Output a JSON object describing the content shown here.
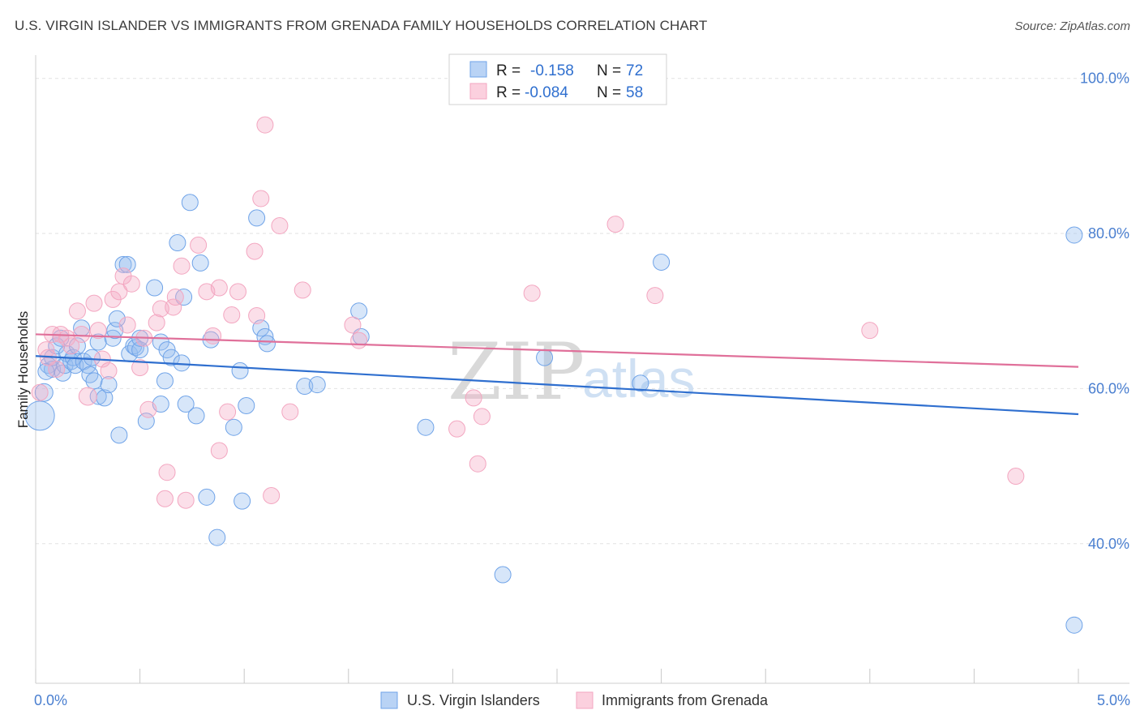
{
  "title": "U.S. VIRGIN ISLANDER VS IMMIGRANTS FROM GRENADA FAMILY HOUSEHOLDS CORRELATION CHART",
  "source": "Source: ZipAtlas.com",
  "watermark": {
    "zip": "ZIP",
    "atlas": "atlas"
  },
  "legend": {
    "rows": [
      {
        "r_label": "R =",
        "r_value": "-0.158",
        "n_label": "N =",
        "n_value": "72"
      },
      {
        "r_label": "R =",
        "r_value": "-0.084",
        "n_label": "N =",
        "n_value": "58"
      }
    ]
  },
  "chart_data": {
    "type": "scatter",
    "title": "U.S. VIRGIN ISLANDER VS IMMIGRANTS FROM GRENADA FAMILY HOUSEHOLDS CORRELATION CHART",
    "xlabel": "",
    "ylabel": "Family Households",
    "xlim": [
      0,
      5
    ],
    "ylim": [
      22,
      103
    ],
    "x_tick_labels": [
      {
        "value": 0,
        "label": "0.0%"
      },
      {
        "value": 5,
        "label": "5.0%"
      }
    ],
    "y_tick_labels": [
      {
        "value": 100,
        "label": "100.0%"
      },
      {
        "value": 80,
        "label": "80.0%"
      },
      {
        "value": 60,
        "label": "60.0%"
      },
      {
        "value": 40,
        "label": "40.0%"
      }
    ],
    "grid": true,
    "legend_position": "top-center",
    "series": [
      {
        "name": "U.S. Virgin Islanders",
        "color": "#6fa3e8",
        "trend_color": "#2f6fcf",
        "trend": {
          "x0": 0.0,
          "y0": 64.2,
          "x1": 5.0,
          "y1": 56.7
        },
        "points": [
          [
            0.02,
            56.5
          ],
          [
            0.04,
            59.5
          ],
          [
            0.06,
            63.0
          ],
          [
            0.08,
            62.5
          ],
          [
            0.08,
            64.0
          ],
          [
            0.1,
            65.5
          ],
          [
            0.12,
            66.5
          ],
          [
            0.13,
            62.0
          ],
          [
            0.14,
            63.0
          ],
          [
            0.15,
            64.5
          ],
          [
            0.17,
            63.5
          ],
          [
            0.18,
            64.0
          ],
          [
            0.19,
            63.0
          ],
          [
            0.2,
            65.5
          ],
          [
            0.22,
            67.8
          ],
          [
            0.23,
            63.5
          ],
          [
            0.25,
            63.0
          ],
          [
            0.26,
            61.8
          ],
          [
            0.27,
            64.0
          ],
          [
            0.28,
            61.0
          ],
          [
            0.3,
            59.0
          ],
          [
            0.3,
            66.0
          ],
          [
            0.33,
            58.8
          ],
          [
            0.35,
            60.5
          ],
          [
            0.37,
            66.5
          ],
          [
            0.38,
            67.5
          ],
          [
            0.39,
            69.0
          ],
          [
            0.4,
            54.0
          ],
          [
            0.42,
            76.0
          ],
          [
            0.44,
            76.0
          ],
          [
            0.45,
            64.5
          ],
          [
            0.47,
            65.5
          ],
          [
            0.48,
            65.3
          ],
          [
            0.5,
            65.0
          ],
          [
            0.5,
            66.5
          ],
          [
            0.53,
            55.8
          ],
          [
            0.57,
            73.0
          ],
          [
            0.6,
            58.0
          ],
          [
            0.6,
            66.0
          ],
          [
            0.62,
            61.0
          ],
          [
            0.63,
            65.0
          ],
          [
            0.65,
            64.0
          ],
          [
            0.68,
            78.8
          ],
          [
            0.7,
            63.3
          ],
          [
            0.71,
            71.8
          ],
          [
            0.72,
            58.0
          ],
          [
            0.74,
            84.0
          ],
          [
            0.77,
            56.5
          ],
          [
            0.79,
            76.2
          ],
          [
            0.82,
            46.0
          ],
          [
            0.84,
            66.3
          ],
          [
            0.87,
            40.8
          ],
          [
            0.95,
            55.0
          ],
          [
            0.98,
            62.3
          ],
          [
            0.99,
            45.5
          ],
          [
            1.01,
            57.8
          ],
          [
            1.06,
            82.0
          ],
          [
            1.08,
            67.8
          ],
          [
            1.1,
            66.7
          ],
          [
            1.11,
            65.8
          ],
          [
            1.29,
            60.3
          ],
          [
            1.35,
            60.5
          ],
          [
            1.55,
            70.0
          ],
          [
            1.56,
            66.7
          ],
          [
            1.87,
            55.0
          ],
          [
            2.24,
            36.0
          ],
          [
            2.44,
            64.0
          ],
          [
            2.9,
            60.7
          ],
          [
            3.0,
            76.3
          ],
          [
            4.98,
            79.8
          ],
          [
            4.98,
            29.5
          ],
          [
            0.05,
            62.2
          ]
        ],
        "sizes": [
          18,
          11,
          10,
          10,
          10,
          10,
          10,
          10,
          10,
          10,
          10,
          10,
          10,
          10,
          10,
          10,
          10,
          10,
          10,
          10,
          10,
          10,
          10,
          10,
          10,
          10,
          10,
          10,
          10,
          10,
          10,
          10,
          10,
          10,
          10,
          10,
          10,
          10,
          10,
          10,
          10,
          10,
          10,
          10,
          10,
          10,
          10,
          10,
          10,
          10,
          10,
          10,
          10,
          10,
          10,
          10,
          10,
          10,
          10,
          10,
          10,
          10,
          10,
          10,
          10,
          10,
          10,
          10,
          10,
          10,
          10,
          10
        ]
      },
      {
        "name": "Immigrants from Grenada",
        "color": "#f3a6c0",
        "trend_color": "#e0709a",
        "trend": {
          "x0": 0.0,
          "y0": 67.0,
          "x1": 5.0,
          "y1": 62.8
        },
        "points": [
          [
            0.02,
            59.5
          ],
          [
            0.05,
            65.0
          ],
          [
            0.08,
            67.0
          ],
          [
            0.1,
            62.5
          ],
          [
            0.12,
            67.0
          ],
          [
            0.15,
            66.5
          ],
          [
            0.17,
            65.5
          ],
          [
            0.2,
            70.0
          ],
          [
            0.22,
            67.0
          ],
          [
            0.25,
            59.0
          ],
          [
            0.28,
            71.0
          ],
          [
            0.3,
            67.5
          ],
          [
            0.32,
            63.8
          ],
          [
            0.35,
            62.3
          ],
          [
            0.37,
            71.5
          ],
          [
            0.4,
            72.5
          ],
          [
            0.42,
            74.5
          ],
          [
            0.44,
            68.2
          ],
          [
            0.46,
            73.5
          ],
          [
            0.5,
            62.7
          ],
          [
            0.52,
            66.5
          ],
          [
            0.54,
            57.3
          ],
          [
            0.58,
            68.5
          ],
          [
            0.6,
            70.3
          ],
          [
            0.62,
            45.8
          ],
          [
            0.63,
            49.2
          ],
          [
            0.66,
            70.5
          ],
          [
            0.67,
            71.8
          ],
          [
            0.7,
            75.8
          ],
          [
            0.72,
            45.6
          ],
          [
            0.78,
            78.5
          ],
          [
            0.82,
            72.5
          ],
          [
            0.85,
            66.8
          ],
          [
            0.88,
            52.0
          ],
          [
            0.88,
            73.0
          ],
          [
            0.92,
            57.0
          ],
          [
            0.94,
            69.5
          ],
          [
            0.97,
            72.5
          ],
          [
            1.05,
            77.7
          ],
          [
            1.06,
            69.4
          ],
          [
            1.08,
            84.5
          ],
          [
            1.1,
            94.0
          ],
          [
            1.13,
            46.2
          ],
          [
            1.17,
            81.0
          ],
          [
            1.22,
            57.0
          ],
          [
            1.28,
            72.7
          ],
          [
            1.52,
            68.2
          ],
          [
            1.55,
            66.2
          ],
          [
            2.02,
            54.8
          ],
          [
            2.1,
            58.8
          ],
          [
            2.12,
            50.3
          ],
          [
            2.14,
            56.4
          ],
          [
            2.38,
            72.3
          ],
          [
            2.78,
            81.2
          ],
          [
            2.97,
            72.0
          ],
          [
            4.0,
            67.5
          ],
          [
            4.7,
            48.7
          ],
          [
            0.06,
            64.0
          ]
        ],
        "sizes": [
          10,
          10,
          10,
          10,
          10,
          10,
          10,
          10,
          10,
          11,
          10,
          10,
          10,
          10,
          10,
          10,
          10,
          10,
          10,
          10,
          10,
          10,
          10,
          10,
          10,
          10,
          10,
          10,
          10,
          10,
          10,
          10,
          10,
          10,
          10,
          10,
          10,
          10,
          10,
          10,
          10,
          10,
          10,
          10,
          10,
          10,
          10,
          10,
          10,
          10,
          10,
          10,
          10,
          10,
          10,
          10,
          10,
          10
        ]
      }
    ]
  }
}
